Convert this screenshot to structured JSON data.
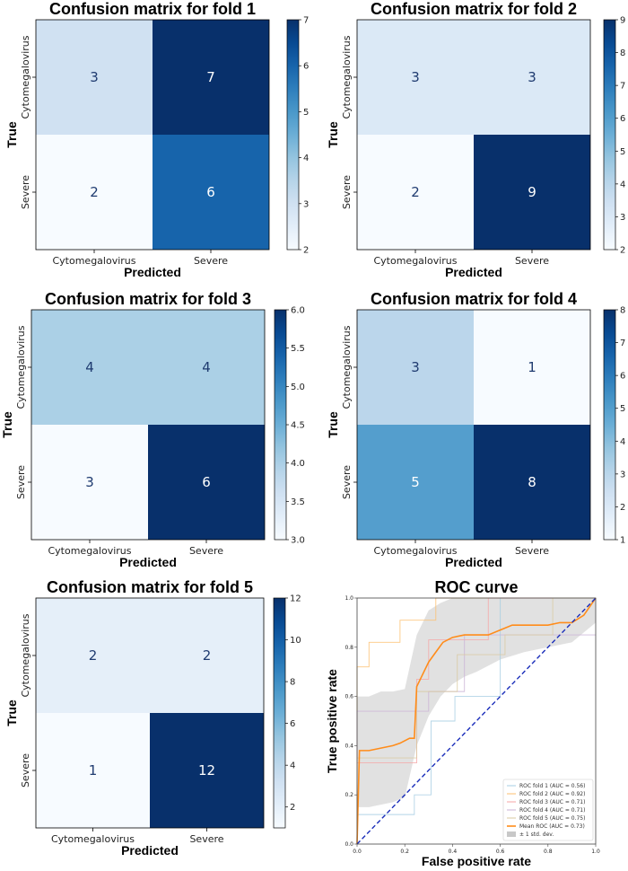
{
  "chart_data": [
    {
      "type": "heatmap",
      "title": "Confusion matrix for fold 1",
      "xlabel": "Predicted",
      "ylabel": "True",
      "row_labels": [
        "Cytomegalovirus",
        "Severe"
      ],
      "col_labels": [
        "Cytomegalovirus",
        "Severe"
      ],
      "values": [
        [
          3,
          7
        ],
        [
          2,
          6
        ]
      ],
      "colorbar": {
        "min": 2,
        "max": 7,
        "ticks": [
          "2",
          "3",
          "4",
          "5",
          "6",
          "7"
        ]
      }
    },
    {
      "type": "heatmap",
      "title": "Confusion matrix for fold 2",
      "xlabel": "Predicted",
      "ylabel": "True",
      "row_labels": [
        "Cytomegalovirus",
        "Severe"
      ],
      "col_labels": [
        "Cytomegalovirus",
        "Severe"
      ],
      "values": [
        [
          3,
          3
        ],
        [
          2,
          9
        ]
      ],
      "colorbar": {
        "min": 2,
        "max": 9,
        "ticks": [
          "2",
          "3",
          "4",
          "5",
          "6",
          "7",
          "8",
          "9"
        ]
      }
    },
    {
      "type": "heatmap",
      "title": "Confusion matrix for fold 3",
      "xlabel": "Predicted",
      "ylabel": "True",
      "row_labels": [
        "Cytomegalovirus",
        "Severe"
      ],
      "col_labels": [
        "Cytomegalovirus",
        "Severe"
      ],
      "values": [
        [
          4,
          4
        ],
        [
          3,
          6
        ]
      ],
      "colorbar": {
        "min": 3,
        "max": 6,
        "ticks": [
          "3.0",
          "3.5",
          "4.0",
          "4.5",
          "5.0",
          "5.5",
          "6.0"
        ]
      }
    },
    {
      "type": "heatmap",
      "title": "Confusion matrix for fold 4",
      "xlabel": "Predicted",
      "ylabel": "True",
      "row_labels": [
        "Cytomegalovirus",
        "Severe"
      ],
      "col_labels": [
        "Cytomegalovirus",
        "Severe"
      ],
      "values": [
        [
          3,
          1
        ],
        [
          5,
          8
        ]
      ],
      "colorbar": {
        "min": 1,
        "max": 8,
        "ticks": [
          "1",
          "2",
          "3",
          "4",
          "5",
          "6",
          "7",
          "8"
        ]
      }
    },
    {
      "type": "heatmap",
      "title": "Confusion matrix for fold 5",
      "xlabel": "Predicted",
      "ylabel": "True",
      "row_labels": [
        "Cytomegalovirus",
        "Severe"
      ],
      "col_labels": [
        "Cytomegalovirus",
        "Severe"
      ],
      "values": [
        [
          2,
          2
        ],
        [
          1,
          12
        ]
      ],
      "colorbar": {
        "min": 1,
        "max": 12,
        "ticks": [
          "2",
          "4",
          "6",
          "8",
          "10",
          "12"
        ]
      }
    },
    {
      "type": "line",
      "title": "ROC curve",
      "xlabel": "False positive rate",
      "ylabel": "True positive rate",
      "xlim": [
        0,
        1
      ],
      "ylim": [
        0,
        1
      ],
      "xticks": [
        "0.0",
        "0.2",
        "0.4",
        "0.6",
        "0.8",
        "1.0"
      ],
      "yticks": [
        "0.0",
        "0.2",
        "0.4",
        "0.6",
        "0.8",
        "1.0"
      ],
      "series": [
        {
          "name": "ROC fold 1 (AUC = 0.56)",
          "color": "#a6cee3",
          "x": [
            0,
            0,
            0.24,
            0.24,
            0.31,
            0.31,
            0.41,
            0.41,
            0.6,
            0.6,
            1.0
          ],
          "y": [
            0,
            0.12,
            0.12,
            0.2,
            0.2,
            0.5,
            0.5,
            0.6,
            0.6,
            1.0,
            1.0
          ]
        },
        {
          "name": "ROC fold 2 (AUC = 0.92)",
          "color": "#fdbf6f",
          "x": [
            0,
            0,
            0.05,
            0.05,
            0.18,
            0.18,
            0.33,
            0.33,
            1.0
          ],
          "y": [
            0,
            0.72,
            0.72,
            0.82,
            0.82,
            0.91,
            0.91,
            1.0,
            1.0
          ]
        },
        {
          "name": "ROC fold 3 (AUC = 0.71)",
          "color": "#f4a6a6",
          "x": [
            0,
            0,
            0.25,
            0.25,
            0.3,
            0.3,
            0.55,
            0.55,
            1.0
          ],
          "y": [
            0,
            0.33,
            0.33,
            0.67,
            0.67,
            0.83,
            0.83,
            1.0,
            1.0
          ]
        },
        {
          "name": "ROC fold 4 (AUC = 0.71)",
          "color": "#cab2d6",
          "x": [
            0,
            0,
            0.3,
            0.3,
            0.45,
            0.45,
            0.75,
            0.75,
            1.0
          ],
          "y": [
            0,
            0.54,
            0.54,
            0.62,
            0.62,
            0.85,
            0.85,
            0.85,
            0.85
          ]
        },
        {
          "name": "ROC fold 5 (AUC = 0.75)",
          "color": "#d9c9a0",
          "x": [
            0,
            0,
            0.25,
            0.25,
            0.42,
            0.42,
            0.62,
            0.62,
            0.82,
            0.82,
            1.0
          ],
          "y": [
            0,
            0.35,
            0.35,
            0.62,
            0.62,
            0.77,
            0.77,
            0.85,
            0.85,
            1.0,
            1.0
          ]
        },
        {
          "name": "Mean ROC (AUC = 0.73)",
          "color": "#ff8c1a",
          "x": [
            0,
            0.01,
            0.05,
            0.1,
            0.15,
            0.18,
            0.22,
            0.24,
            0.25,
            0.27,
            0.3,
            0.33,
            0.36,
            0.4,
            0.45,
            0.5,
            0.55,
            0.6,
            0.65,
            0.7,
            0.75,
            0.8,
            0.85,
            0.9,
            0.95,
            1.0
          ],
          "y": [
            0,
            0.38,
            0.38,
            0.39,
            0.4,
            0.41,
            0.43,
            0.43,
            0.64,
            0.68,
            0.74,
            0.78,
            0.82,
            0.84,
            0.85,
            0.85,
            0.85,
            0.87,
            0.89,
            0.89,
            0.89,
            0.89,
            0.9,
            0.9,
            0.93,
            1.0
          ]
        }
      ],
      "band": {
        "name": "± 1 std. dev.",
        "color": "#c8c8c8",
        "x": [
          0,
          0.05,
          0.1,
          0.15,
          0.2,
          0.25,
          0.3,
          0.35,
          0.4,
          0.45,
          0.5,
          0.6,
          0.7,
          0.8,
          0.9,
          1.0
        ],
        "upper": [
          0.6,
          0.6,
          0.62,
          0.62,
          0.63,
          0.85,
          0.95,
          0.98,
          1.0,
          1.0,
          1.0,
          1.0,
          1.0,
          1.0,
          1.0,
          1.0
        ],
        "lower": [
          0.15,
          0.15,
          0.16,
          0.17,
          0.19,
          0.4,
          0.52,
          0.6,
          0.65,
          0.68,
          0.7,
          0.75,
          0.78,
          0.8,
          0.82,
          0.9
        ]
      },
      "chance": {
        "name": "Chance",
        "color": "#1a2dba",
        "dashed": true
      },
      "legend": [
        "ROC fold 1 (AUC = 0.56)",
        "ROC fold 2 (AUC = 0.92)",
        "ROC fold 3 (AUC = 0.71)",
        "ROC fold 4 (AUC = 0.71)",
        "ROC fold 5 (AUC = 0.75)",
        "Mean ROC (AUC = 0.73)",
        "± 1 std. dev."
      ],
      "legend_position": "lower-right"
    }
  ]
}
